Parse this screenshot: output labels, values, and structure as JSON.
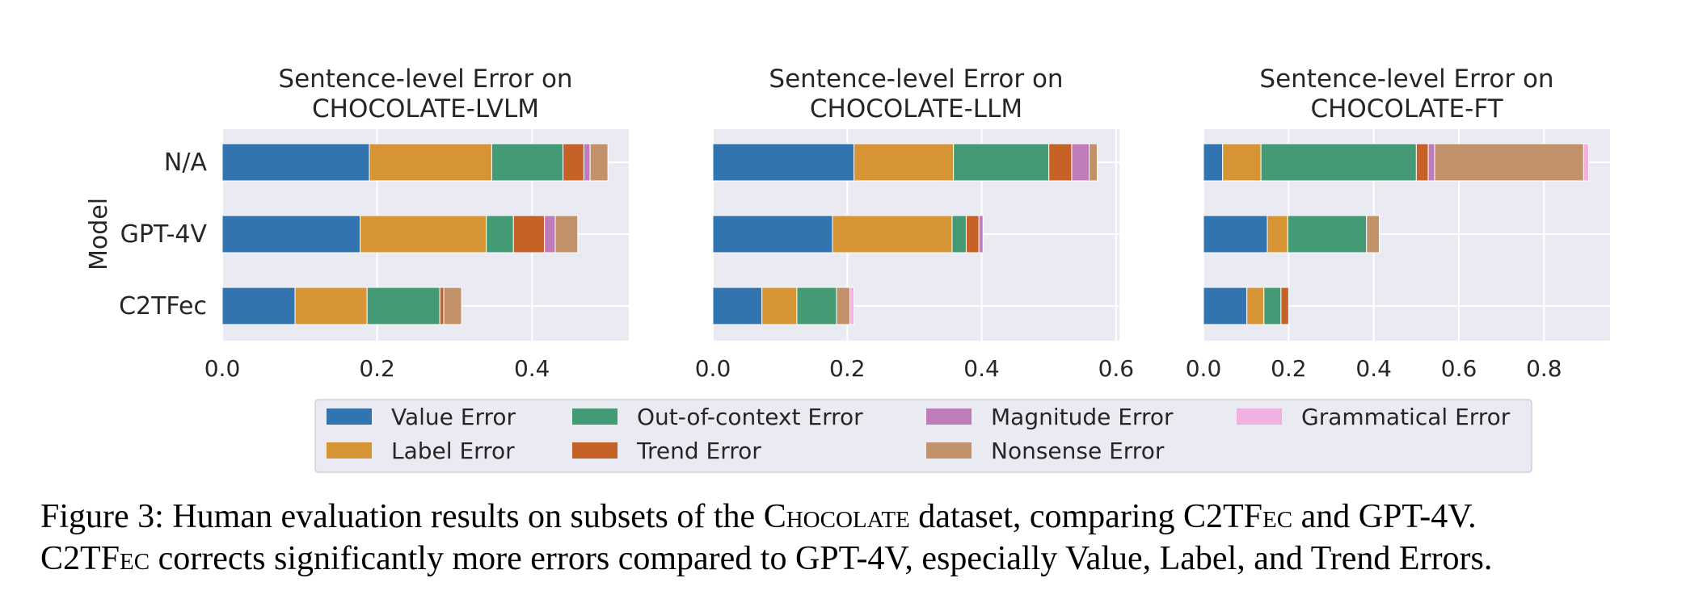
{
  "chart_data": {
    "type": "bar",
    "orientation": "horizontal",
    "stacked": true,
    "ylabel": "Model",
    "categories": [
      "N/A",
      "GPT-4V",
      "C2TFec"
    ],
    "grid": true,
    "legend_position": "bottom-center",
    "series_meta": [
      {
        "name": "Value Error",
        "color": "#3274b0"
      },
      {
        "name": "Label Error",
        "color": "#d69434"
      },
      {
        "name": "Out-of-context Error",
        "color": "#449a75"
      },
      {
        "name": "Trend Error",
        "color": "#c66128"
      },
      {
        "name": "Magnitude Error",
        "color": "#bf7cba"
      },
      {
        "name": "Nonsense Error",
        "color": "#c19169"
      },
      {
        "name": "Grammatical Error",
        "color": "#f0b1e0"
      }
    ],
    "panels": [
      {
        "title_line1": "Sentence-level Error on",
        "title_line2": "CHOCOLATE-LVLM",
        "xlim": [
          0,
          0.525
        ],
        "xticks": [
          0,
          0.2,
          0.4
        ],
        "xtick_labels": [
          "0.0",
          "0.2",
          "0.4"
        ],
        "values": [
          [
            0.19,
            0.158,
            0.092,
            0.027,
            0.008,
            0.023,
            0.0
          ],
          [
            0.178,
            0.163,
            0.035,
            0.04,
            0.014,
            0.029,
            0.0
          ],
          [
            0.094,
            0.093,
            0.094,
            0.005,
            0.0,
            0.023,
            0.0
          ]
        ]
      },
      {
        "title_line1": "Sentence-level Error on",
        "title_line2": "CHOCOLATE-LLM",
        "xlim": [
          0,
          0.605
        ],
        "xticks": [
          0,
          0.2,
          0.4,
          0.6
        ],
        "xtick_labels": [
          "0.0",
          "0.2",
          "0.4",
          "0.6"
        ],
        "values": [
          [
            0.21,
            0.148,
            0.142,
            0.034,
            0.026,
            0.012,
            0.0
          ],
          [
            0.178,
            0.178,
            0.021,
            0.019,
            0.006,
            0.0,
            0.0
          ],
          [
            0.073,
            0.052,
            0.059,
            0.0,
            0.0,
            0.02,
            0.006
          ]
        ]
      },
      {
        "title_line1": "Sentence-level Error on",
        "title_line2": "CHOCOLATE-FT",
        "xlim": [
          0,
          0.955
        ],
        "xticks": [
          0,
          0.2,
          0.4,
          0.6,
          0.8
        ],
        "xtick_labels": [
          "0.0",
          "0.2",
          "0.4",
          "0.6",
          "0.8"
        ],
        "values": [
          [
            0.045,
            0.09,
            0.365,
            0.028,
            0.015,
            0.35,
            0.012
          ],
          [
            0.15,
            0.048,
            0.185,
            0.0,
            0.0,
            0.03,
            0.0
          ],
          [
            0.102,
            0.04,
            0.04,
            0.018,
            0.0,
            0.0,
            0.0
          ]
        ]
      }
    ]
  },
  "caption": {
    "line1_parts": [
      "Figure 3: Human evaluation results on subsets of the ",
      "Chocolate",
      " dataset, comparing ",
      "C2TFec",
      " and GPT-4V."
    ],
    "line2_parts": [
      "C2TFec",
      " corrects significantly more errors compared to GPT-4V, especially Value, Label, and Trend Errors."
    ]
  }
}
